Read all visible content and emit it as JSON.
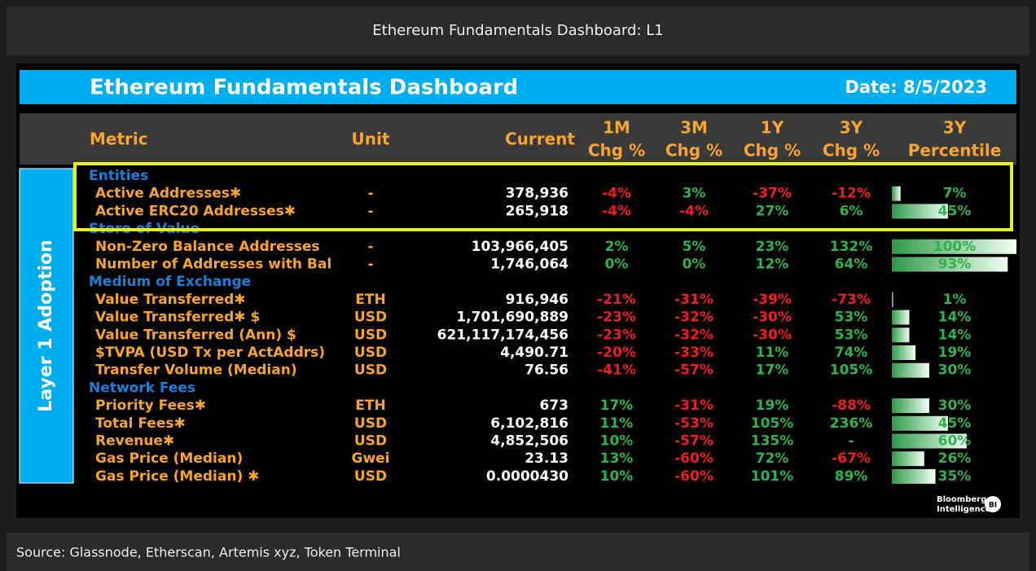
{
  "window_title": "Ethereum Fundamentals Dashboard: L1",
  "banner": {
    "title": "Ethereum Fundamentals Dashboard",
    "date": "Date: 8/5/2023"
  },
  "side_label": "Layer 1 Adoption",
  "columns": [
    [
      "Metric"
    ],
    [
      "Unit"
    ],
    [
      "Current"
    ],
    [
      "1M",
      "Chg %"
    ],
    [
      "3M",
      "Chg %"
    ],
    [
      "1Y",
      "Chg %"
    ],
    [
      "3Y",
      "Chg %"
    ],
    [
      "3Y",
      "Percentile"
    ]
  ],
  "sections": [
    {
      "name": "Entities",
      "rows": [
        {
          "metric": "Active Addresses✱",
          "unit": "-",
          "current": "378,936",
          "changes": [
            "-4%",
            "3%",
            "-37%",
            "-12%"
          ],
          "percentile": 7,
          "percentile_label": "7%"
        },
        {
          "metric": "Active ERC20 Addresses✱",
          "unit": "-",
          "current": "265,918",
          "changes": [
            "-4%",
            "-4%",
            "27%",
            "6%"
          ],
          "percentile": 45,
          "percentile_label": "45%"
        }
      ]
    },
    {
      "name": "Store of Value",
      "rows": [
        {
          "metric": "Non-Zero Balance Addresses",
          "unit": "-",
          "current": "103,966,405",
          "changes": [
            "2%",
            "5%",
            "23%",
            "132%"
          ],
          "percentile": 100,
          "percentile_label": "100%"
        },
        {
          "metric": "Number of Addresses with Bal",
          "unit": "-",
          "current": "1,746,064",
          "changes": [
            "0%",
            "0%",
            "12%",
            "64%"
          ],
          "percentile": 93,
          "percentile_label": "93%"
        }
      ]
    },
    {
      "name": "Medium of Exchange",
      "rows": [
        {
          "metric": "Value Transferred✱",
          "unit": "ETH",
          "current": "916,946",
          "changes": [
            "-21%",
            "-31%",
            "-39%",
            "-73%"
          ],
          "percentile": 1,
          "percentile_label": "1%"
        },
        {
          "metric": "Value Transferred✱ $",
          "unit": "USD",
          "current": "1,701,690,889",
          "changes": [
            "-23%",
            "-32%",
            "-30%",
            "53%"
          ],
          "percentile": 14,
          "percentile_label": "14%"
        },
        {
          "metric": "Value Transferred (Ann) $",
          "unit": "USD",
          "current": "621,117,174,456",
          "changes": [
            "-23%",
            "-32%",
            "-30%",
            "53%"
          ],
          "percentile": 14,
          "percentile_label": "14%"
        },
        {
          "metric": "$TVPA (USD Tx per ActAddrs)",
          "unit": "USD",
          "current": "4,490.71",
          "changes": [
            "-20%",
            "-33%",
            "11%",
            "74%"
          ],
          "percentile": 19,
          "percentile_label": "19%"
        },
        {
          "metric": "Transfer Volume (Median)",
          "unit": "USD",
          "current": "76.56",
          "changes": [
            "-41%",
            "-57%",
            "17%",
            "105%"
          ],
          "percentile": 30,
          "percentile_label": "30%"
        }
      ]
    },
    {
      "name": "Network Fees",
      "rows": [
        {
          "metric": "Priority Fees✱",
          "unit": "ETH",
          "current": "673",
          "changes": [
            "17%",
            "-31%",
            "19%",
            "-88%"
          ],
          "percentile": 30,
          "percentile_label": "30%"
        },
        {
          "metric": "Total Fees✱",
          "unit": "USD",
          "current": "6,102,816",
          "changes": [
            "11%",
            "-53%",
            "105%",
            "236%"
          ],
          "percentile": 45,
          "percentile_label": "45%"
        },
        {
          "metric": "Revenue✱",
          "unit": "USD",
          "current": "4,852,506",
          "changes": [
            "10%",
            "-57%",
            "135%",
            "-"
          ],
          "percentile": 60,
          "percentile_label": "60%"
        },
        {
          "metric": "Gas Price (Median)",
          "unit": "Gwei",
          "current": "23.13",
          "changes": [
            "13%",
            "-60%",
            "72%",
            "-67%"
          ],
          "percentile": 26,
          "percentile_label": "26%"
        },
        {
          "metric": "Gas Price (Median) ✱",
          "unit": "USD",
          "current": "0.0000430",
          "changes": [
            "10%",
            "-60%",
            "101%",
            "89%"
          ],
          "percentile": 35,
          "percentile_label": "35%"
        }
      ]
    }
  ],
  "logo": {
    "lines": [
      "Bloomberg",
      "Intelligence"
    ],
    "badge": "BI"
  },
  "source": "Source: Glassnode, Etherscan, Artemis xyz, Token Terminal"
}
